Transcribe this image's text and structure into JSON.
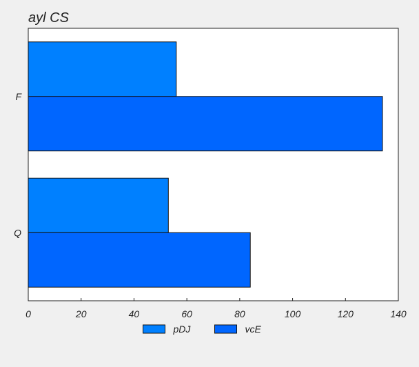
{
  "chart_data": {
    "type": "bar",
    "orientation": "horizontal",
    "title": "ayl CS",
    "xlabel": "",
    "ylabel": "",
    "categories": [
      "F",
      "Q"
    ],
    "series": [
      {
        "name": "pDJ",
        "color": "#0080ff",
        "values": [
          56,
          53
        ]
      },
      {
        "name": "vcE",
        "color": "#0066ff",
        "values": [
          134,
          84
        ]
      }
    ],
    "xlim": [
      0,
      140
    ],
    "xticks": [
      0,
      20,
      40,
      60,
      80,
      100,
      120,
      140
    ],
    "grid": false,
    "legend": "bottom-center"
  }
}
